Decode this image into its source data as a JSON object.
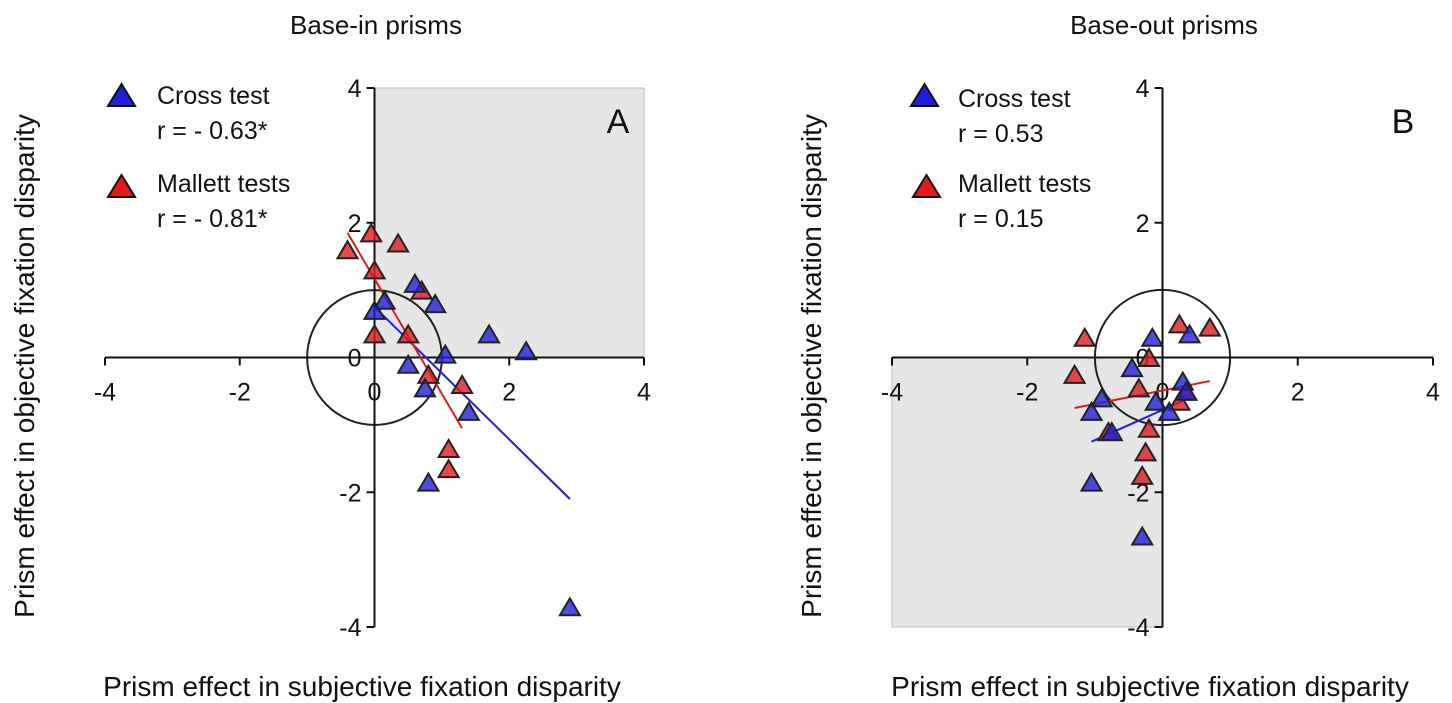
{
  "chart_data": [
    {
      "type": "scatter",
      "panel_label": "A",
      "title": "Base-in prisms",
      "xlabel": "Prism effect in subjective fixation disparity",
      "ylabel": "Prism effect in objective fixation disparity",
      "xlim": [
        -4,
        4
      ],
      "ylim": [
        -4,
        4
      ],
      "x_ticks": [
        "-4",
        "-2",
        "0",
        "2",
        "4"
      ],
      "y_ticks": [
        "4",
        "2",
        "0",
        "-2",
        "-4"
      ],
      "shaded_quadrant": {
        "x": [
          0,
          4
        ],
        "y": [
          0,
          4
        ],
        "color": "#e6e6e6"
      },
      "circle": {
        "center": [
          0,
          0
        ],
        "radius": 1
      },
      "legend_position": "top-left",
      "series": [
        {
          "name": "Cross test",
          "stat": "r = - 0.63*",
          "color": "#1f1fe0",
          "line_color": "#1f1fe0",
          "fit": {
            "x": [
              0,
              2.9
            ],
            "y": [
              0.75,
              -2.1
            ]
          },
          "points": [
            [
              0.15,
              0.85
            ],
            [
              0.6,
              1.1
            ],
            [
              0.9,
              0.8
            ],
            [
              1.7,
              0.35
            ],
            [
              2.25,
              0.1
            ],
            [
              1.05,
              0.05
            ],
            [
              0.5,
              -0.1
            ],
            [
              0.75,
              -0.45
            ],
            [
              1.4,
              -0.8
            ],
            [
              0.8,
              -1.85
            ],
            [
              2.9,
              -3.7
            ],
            [
              0,
              0.7
            ]
          ]
        },
        {
          "name": "Mallett tests",
          "stat": "r = - 0.81*",
          "color": "#e01b1b",
          "line_color": "#e01b1b",
          "fit": {
            "x": [
              -0.4,
              1.3
            ],
            "y": [
              1.85,
              -1.05
            ]
          },
          "points": [
            [
              -0.4,
              1.6
            ],
            [
              -0.05,
              1.85
            ],
            [
              0.35,
              1.7
            ],
            [
              0,
              1.3
            ],
            [
              0.7,
              1.0
            ],
            [
              0.5,
              0.35
            ],
            [
              0,
              0.35
            ],
            [
              0.8,
              -0.25
            ],
            [
              1.3,
              -0.4
            ],
            [
              1.1,
              -1.35
            ],
            [
              1.1,
              -1.65
            ]
          ]
        }
      ]
    },
    {
      "type": "scatter",
      "panel_label": "B",
      "title": "Base-out prisms",
      "xlabel": "Prism effect in subjective fixation disparity",
      "ylabel": "Prism effect in objective fixation disparity",
      "xlim": [
        -4,
        4
      ],
      "ylim": [
        -4,
        4
      ],
      "x_ticks": [
        "-4",
        "-2",
        "0",
        "2",
        "4"
      ],
      "y_ticks": [
        "4",
        "2",
        "0",
        "-2",
        "-4"
      ],
      "shaded_quadrant": {
        "x": [
          -4,
          0
        ],
        "y": [
          -4,
          0
        ],
        "color": "#e6e6e6"
      },
      "circle": {
        "center": [
          0,
          0
        ],
        "radius": 1
      },
      "legend_position": "top-left",
      "series": [
        {
          "name": "Cross test",
          "stat": "r = 0.53",
          "color": "#1f1fe0",
          "line_color": "#1f1fe0",
          "fit": {
            "x": [
              -1.05,
              0.4
            ],
            "y": [
              -1.25,
              -0.6
            ]
          },
          "points": [
            [
              -0.15,
              0.3
            ],
            [
              0.4,
              0.35
            ],
            [
              -0.45,
              -0.15
            ],
            [
              0.3,
              -0.35
            ],
            [
              0.35,
              -0.5
            ],
            [
              -0.9,
              -0.6
            ],
            [
              -1.05,
              -0.8
            ],
            [
              -0.1,
              -0.65
            ],
            [
              0.1,
              -0.8
            ],
            [
              -0.75,
              -1.1
            ],
            [
              -1.05,
              -1.85
            ],
            [
              -0.3,
              -2.65
            ]
          ]
        },
        {
          "name": "Mallett tests",
          "stat": "r = 0.15",
          "color": "#e01b1b",
          "line_color": "#e01b1b",
          "fit": {
            "x": [
              -1.3,
              0.7
            ],
            "y": [
              -0.75,
              -0.35
            ]
          },
          "points": [
            [
              -1.15,
              0.3
            ],
            [
              0.25,
              0.5
            ],
            [
              0.7,
              0.45
            ],
            [
              -0.2,
              0
            ],
            [
              -1.3,
              -0.25
            ],
            [
              -0.35,
              -0.45
            ],
            [
              0.35,
              -0.5
            ],
            [
              0.25,
              -0.65
            ],
            [
              -0.2,
              -1.05
            ],
            [
              -0.25,
              -1.4
            ],
            [
              -0.3,
              -1.75
            ],
            [
              -0.8,
              -1.1
            ]
          ]
        }
      ]
    }
  ]
}
